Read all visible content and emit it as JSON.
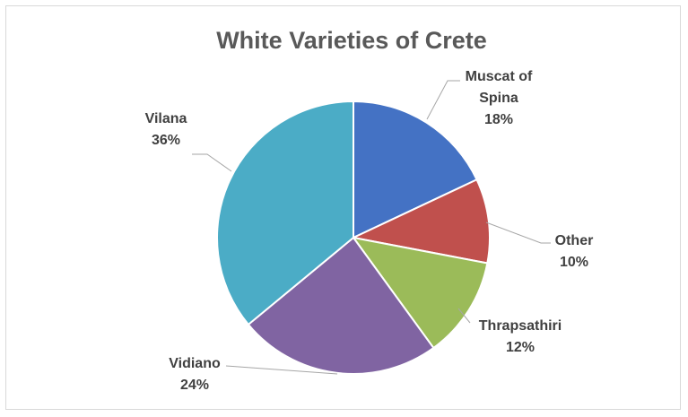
{
  "chart_data": {
    "type": "pie",
    "title": "White Varieties of Crete",
    "slices": [
      {
        "name": "Muscat of Spina",
        "label_lines": [
          "Muscat of",
          "Spina"
        ],
        "value": 18,
        "value_label": "18%",
        "color": "#4472c4"
      },
      {
        "name": "Other",
        "label_lines": [
          "Other"
        ],
        "value": 10,
        "value_label": "10%",
        "color": "#c0504d"
      },
      {
        "name": "Thrapsathiri",
        "label_lines": [
          "Thrapsathiri"
        ],
        "value": 12,
        "value_label": "12%",
        "color": "#9bbb59"
      },
      {
        "name": "Vidiano",
        "label_lines": [
          "Vidiano"
        ],
        "value": 24,
        "value_label": "24%",
        "color": "#8064a2"
      },
      {
        "name": "Vilana",
        "label_lines": [
          "Vilana"
        ],
        "value": 36,
        "value_label": "36%",
        "color": "#4bacc6"
      }
    ],
    "start_angle": "12 o'clock",
    "direction": "clockwise",
    "legend": "none",
    "data_labels": "outside with leader lines"
  }
}
